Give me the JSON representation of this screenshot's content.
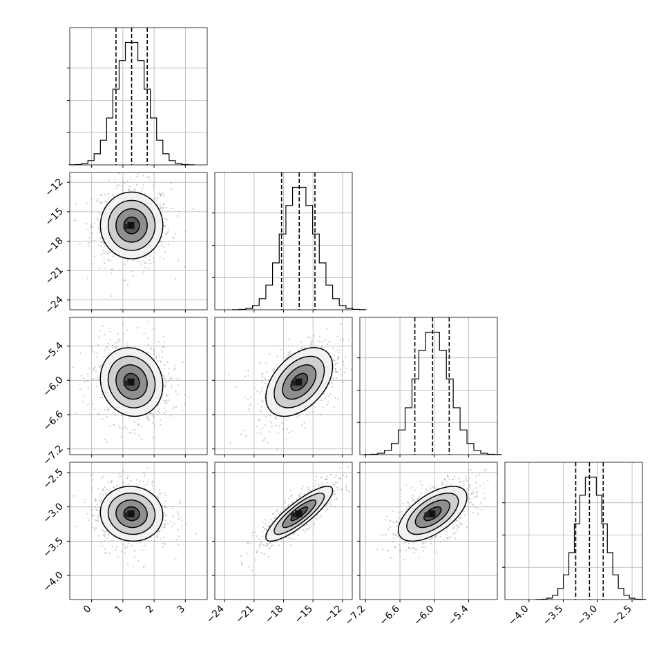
{
  "chart_data": {
    "type": "corner",
    "grid": true,
    "parameters": [
      {
        "range": [
          -0.7,
          3.7
        ],
        "ticks": [
          0,
          1,
          2,
          3
        ],
        "tick_labels": [
          "0",
          "1",
          "2",
          "3"
        ],
        "quantiles": [
          0.78,
          1.28,
          1.78
        ],
        "mean": 1.28,
        "sd": 0.5,
        "hist_peak": 1.0
      },
      {
        "range": [
          -25.0,
          -11.0
        ],
        "ticks": [
          -24,
          -21,
          -18,
          -15,
          -12
        ],
        "tick_labels": [
          "−24",
          "−21",
          "−18",
          "−15",
          "−12"
        ],
        "quantiles": [
          -18.2,
          -16.4,
          -14.8
        ],
        "mean": -16.4,
        "sd": 1.7,
        "hist_peak": 1.0
      },
      {
        "range": [
          -7.3,
          -4.9
        ],
        "ticks": [
          -7.2,
          -6.6,
          -6.0,
          -5.4
        ],
        "tick_labels": [
          "−7.2",
          "−6.6",
          "−6.0",
          "−5.4"
        ],
        "quantiles": [
          -6.34,
          -6.03,
          -5.74
        ],
        "mean": -6.03,
        "sd": 0.3,
        "hist_peak": 1.0
      },
      {
        "range": [
          -4.35,
          -2.35
        ],
        "ticks": [
          -4.0,
          -3.5,
          -3.0,
          -2.5
        ],
        "tick_labels": [
          "−4.0",
          "−3.5",
          "−3.0",
          "−2.5"
        ],
        "quantiles": [
          -3.32,
          -3.12,
          -2.92
        ],
        "mean": -3.1,
        "sd": 0.2,
        "hist_peak": 1.0
      }
    ],
    "correlations": [
      [
        1.0,
        0.0,
        -0.1,
        -0.05
      ],
      [
        0.0,
        1.0,
        0.45,
        0.85
      ],
      [
        -0.1,
        0.45,
        1.0,
        0.6
      ],
      [
        -0.05,
        0.85,
        0.6,
        1.0
      ]
    ],
    "contour_levels_sigma": [
      0.5,
      1.0,
      1.5,
      2.0
    ],
    "scatter_points_per_panel": 700
  }
}
